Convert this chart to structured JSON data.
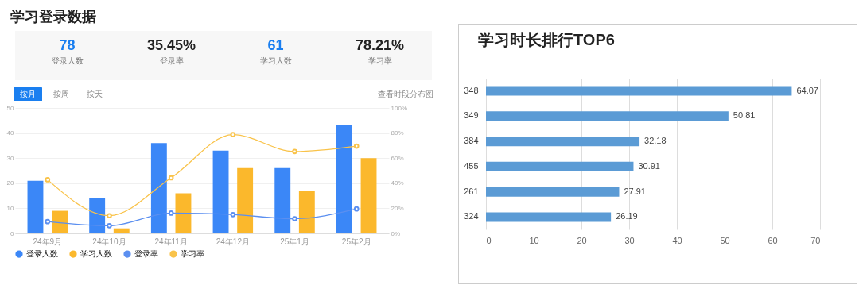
{
  "chart_data": [
    {
      "type": "other",
      "title": "学习登录数据",
      "annotations": [
        "78",
        "登录人数",
        "35.45%",
        "登录率",
        "61",
        "学习人数",
        "78.21%",
        "学习率"
      ]
    },
    {
      "type": "bar",
      "categories": [
        "24年9月",
        "24年10月",
        "24年11月",
        "24年12月",
        "25年1月",
        "25年2月"
      ],
      "annotations": [
        "按月",
        "按周",
        "按天",
        "查看时段分布图"
      ],
      "marker": "circle",
      "series": [
        {
          "name": "登录人数",
          "color": "#3b87f7",
          "values": [
            21,
            14,
            36,
            33,
            26,
            43
          ]
        },
        {
          "name": "学习人数",
          "color": "#fbb82c",
          "values": [
            9,
            2,
            16,
            26,
            17,
            30
          ]
        },
        {
          "name": "登录率",
          "type": "line",
          "axis": "y2",
          "color": "#5b8ff0",
          "values": [
            9.4,
            6.1,
            16.2,
            15.0,
            11.7,
            19.5
          ]
        },
        {
          "name": "学习率",
          "type": "line",
          "axis": "y2",
          "color": "#f9c34a",
          "values": [
            42.8,
            14.1,
            44.3,
            78.7,
            65.3,
            69.6
          ]
        }
      ],
      "ylim": [
        0,
        50
      ],
      "yticks": [
        0,
        10,
        20,
        30,
        40,
        50
      ],
      "y2lim": [
        0,
        100
      ],
      "y2ticks": [
        {
          "value": 0,
          "label": "0%"
        },
        {
          "value": 20,
          "label": "20%"
        },
        {
          "value": 40,
          "label": "40%"
        },
        {
          "value": 60,
          "label": "60%"
        },
        {
          "value": 80,
          "label": "80%"
        },
        {
          "value": 100,
          "label": "100%"
        }
      ],
      "grid": "y",
      "legend": "bottom"
    },
    {
      "type": "bar",
      "orientation": "horizontal",
      "title": "学习时长排行TOP6",
      "categories": [
        "348",
        "349",
        "384",
        "455",
        "261",
        "324"
      ],
      "values": [
        64.07,
        50.81,
        32.18,
        30.91,
        27.91,
        26.19
      ],
      "color": "#5b9bd5",
      "xlim": [
        0,
        70
      ],
      "xticks": [
        0,
        10,
        20,
        30,
        40,
        50,
        60,
        70
      ],
      "grid": "x",
      "data_labels": true
    }
  ]
}
